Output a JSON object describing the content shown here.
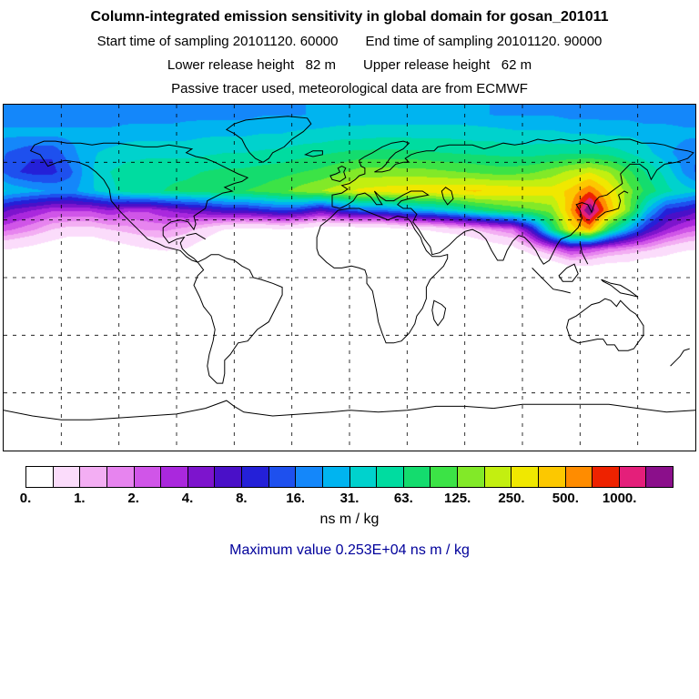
{
  "header": {
    "title": "Column-integrated emission sensitivity in global domain for gosan_201011",
    "start_time": "Start time of sampling 20101120. 60000",
    "end_time": "End time of sampling 20101120. 90000",
    "lower_release": "Lower release height   82 m",
    "upper_release": "Upper release height   62 m",
    "tracer_line": "Passive tracer used, meteorological data are from ECMWF"
  },
  "text_colors": {
    "max_value": "#00009b",
    "titles": "#000000"
  },
  "chart_data": {
    "type": "heatmap",
    "title": "Column-integrated emission sensitivity in global domain for gosan_201011",
    "station": "gosan_201011",
    "units": "ns m / kg",
    "max_value_label": "Maximum value  0.253E+04 ns m / kg",
    "max_value_ns_m_per_kg": 2530,
    "colorbar": {
      "label": "ns m / kg",
      "ticks": [
        "0.",
        "1.",
        "2.",
        "4.",
        "8.",
        "16.",
        "31.",
        "63.",
        "125.",
        "250.",
        "500.",
        "1000."
      ],
      "tick_values": [
        0,
        1,
        2,
        4,
        8,
        16,
        31,
        63,
        125,
        250,
        500,
        1000
      ],
      "segments_per_tick_interval": 2,
      "colors": [
        "#ffffff",
        "#fbdcfb",
        "#f3aef3",
        "#e784ef",
        "#d055e8",
        "#aa28dd",
        "#7d14cd",
        "#4a10c8",
        "#2420d8",
        "#1e50ee",
        "#1487fa",
        "#00b4f0",
        "#00d2cd",
        "#00dca0",
        "#14dc6e",
        "#3ce346",
        "#82e928",
        "#c3ef10",
        "#f0e800",
        "#fcc800",
        "#ff8c00",
        "#ee2200",
        "#e41f7a",
        "#8b0f8b"
      ]
    },
    "projection": {
      "type": "equirectangular",
      "lon_range": [
        -180,
        180
      ],
      "lat_range": [
        -90,
        90
      ],
      "grid_step_deg": 30
    },
    "field": {
      "description": "Approximate column-integrated emission sensitivity (ns m/kg) read from the plot on a 10-degree grid, rows from 85N to 85S, columns from 175W to 175E",
      "lon_centers_start": -175,
      "lon_step": 10,
      "lat_centers_start": 85,
      "lat_step": -10,
      "values": [
        [
          18,
          18,
          18,
          18,
          18,
          18,
          18,
          18,
          18,
          20,
          20,
          20,
          20,
          22,
          22,
          22,
          25,
          25,
          25,
          25,
          25,
          25,
          25,
          25,
          25,
          22,
          22,
          22,
          22,
          20,
          20,
          20,
          20,
          18,
          18,
          18
        ],
        [
          25,
          25,
          25,
          25,
          25,
          25,
          28,
          28,
          28,
          28,
          30,
          30,
          30,
          32,
          32,
          35,
          35,
          38,
          38,
          40,
          40,
          40,
          40,
          40,
          38,
          38,
          35,
          35,
          35,
          32,
          32,
          30,
          30,
          28,
          28,
          25
        ],
        [
          15,
          12,
          12,
          20,
          30,
          35,
          38,
          40,
          40,
          40,
          42,
          45,
          45,
          48,
          50,
          55,
          60,
          65,
          70,
          70,
          70,
          68,
          65,
          62,
          60,
          58,
          55,
          55,
          58,
          60,
          60,
          55,
          45,
          35,
          25,
          18
        ],
        [
          12,
          10,
          10,
          15,
          30,
          45,
          55,
          60,
          60,
          60,
          65,
          70,
          70,
          75,
          80,
          90,
          100,
          120,
          150,
          150,
          150,
          150,
          140,
          130,
          120,
          110,
          110,
          120,
          150,
          200,
          250,
          180,
          100,
          60,
          40,
          20
        ],
        [
          30,
          25,
          22,
          20,
          30,
          40,
          55,
          60,
          65,
          70,
          75,
          80,
          90,
          100,
          120,
          150,
          180,
          220,
          280,
          300,
          320,
          330,
          340,
          360,
          380,
          360,
          340,
          320,
          300,
          400,
          700,
          350,
          150,
          80,
          50,
          38
        ],
        [
          5,
          4,
          3,
          3,
          3,
          4,
          3,
          3,
          4,
          5,
          6,
          8,
          8,
          10,
          12,
          10,
          6,
          10,
          15,
          15,
          20,
          25,
          30,
          40,
          60,
          80,
          100,
          120,
          150,
          500,
          2200,
          500,
          150,
          30,
          10,
          8
        ],
        [
          2,
          1.5,
          1,
          0.8,
          0.8,
          1,
          1.2,
          1.5,
          1.5,
          1.2,
          0.8,
          0.5,
          0.4,
          0.4,
          0.5,
          0.4,
          0.3,
          0.3,
          0.3,
          0.3,
          0.4,
          0.5,
          0.6,
          0.8,
          1,
          1.5,
          2,
          8,
          60,
          300,
          500,
          80,
          25,
          8,
          4,
          2.5
        ],
        [
          0.5,
          0.4,
          0.3,
          0.2,
          0.2,
          0.3,
          0.4,
          0.5,
          0.6,
          0.5,
          0.3,
          0.1,
          0.1,
          0,
          0,
          0,
          0,
          0,
          0,
          0,
          0,
          0,
          0.1,
          0.1,
          0.2,
          0.3,
          0.4,
          1,
          2,
          4,
          3,
          2,
          1.5,
          1.2,
          0.8,
          0.6
        ],
        [
          0.1,
          0.1,
          0,
          0,
          0,
          0,
          0,
          0.1,
          0.1,
          0,
          0,
          0,
          0,
          0,
          0,
          0,
          0,
          0,
          0,
          0,
          0,
          0,
          0,
          0,
          0,
          0,
          0,
          0.1,
          0.2,
          0.4,
          0.4,
          0.3,
          0.3,
          0.2,
          0.2,
          0.1
        ],
        [
          0,
          0,
          0,
          0,
          0,
          0,
          0,
          0,
          0,
          0,
          0,
          0,
          0,
          0,
          0,
          0,
          0,
          0,
          0,
          0,
          0,
          0,
          0,
          0,
          0,
          0,
          0,
          0,
          0,
          0,
          0,
          0,
          0,
          0,
          0,
          0
        ],
        [
          0,
          0,
          0,
          0,
          0,
          0,
          0,
          0,
          0,
          0,
          0,
          0,
          0,
          0,
          0,
          0,
          0,
          0,
          0,
          0,
          0,
          0,
          0,
          0,
          0,
          0,
          0,
          0,
          0,
          0,
          0,
          0,
          0,
          0,
          0,
          0
        ],
        [
          0,
          0,
          0,
          0,
          0,
          0,
          0,
          0,
          0,
          0,
          0,
          0,
          0,
          0,
          0,
          0,
          0,
          0,
          0,
          0,
          0,
          0,
          0,
          0,
          0,
          0,
          0,
          0,
          0,
          0,
          0,
          0,
          0,
          0,
          0,
          0
        ],
        [
          0,
          0,
          0,
          0,
          0,
          0,
          0,
          0,
          0,
          0,
          0,
          0,
          0,
          0,
          0,
          0,
          0,
          0,
          0,
          0,
          0,
          0,
          0,
          0,
          0,
          0,
          0,
          0,
          0,
          0,
          0,
          0,
          0,
          0,
          0,
          0
        ],
        [
          0,
          0,
          0,
          0,
          0,
          0,
          0,
          0,
          0,
          0,
          0,
          0,
          0,
          0,
          0,
          0,
          0,
          0,
          0,
          0,
          0,
          0,
          0,
          0,
          0,
          0,
          0,
          0,
          0,
          0,
          0,
          0,
          0,
          0,
          0,
          0
        ],
        [
          0,
          0,
          0,
          0,
          0,
          0,
          0,
          0,
          0,
          0,
          0,
          0,
          0,
          0,
          0,
          0,
          0,
          0,
          0,
          0,
          0,
          0,
          0,
          0,
          0,
          0,
          0,
          0,
          0,
          0,
          0,
          0,
          0,
          0,
          0,
          0
        ],
        [
          0,
          0,
          0,
          0,
          0,
          0,
          0,
          0,
          0,
          0,
          0,
          0,
          0,
          0,
          0,
          0,
          0,
          0,
          0,
          0,
          0,
          0,
          0,
          0,
          0,
          0,
          0,
          0,
          0,
          0,
          0,
          0,
          0,
          0,
          0,
          0
        ],
        [
          0,
          0,
          0,
          0,
          0,
          0,
          0,
          0,
          0,
          0,
          0,
          0,
          0,
          0,
          0,
          0,
          0,
          0,
          0,
          0,
          0,
          0,
          0,
          0,
          0,
          0,
          0,
          0,
          0,
          0,
          0,
          0,
          0,
          0,
          0,
          0
        ],
        [
          0,
          0,
          0,
          0,
          0,
          0,
          0,
          0,
          0,
          0,
          0,
          0,
          0,
          0,
          0,
          0,
          0,
          0,
          0,
          0,
          0,
          0,
          0,
          0,
          0,
          0,
          0,
          0,
          0,
          0,
          0,
          0,
          0,
          0,
          0,
          0
        ]
      ]
    }
  }
}
